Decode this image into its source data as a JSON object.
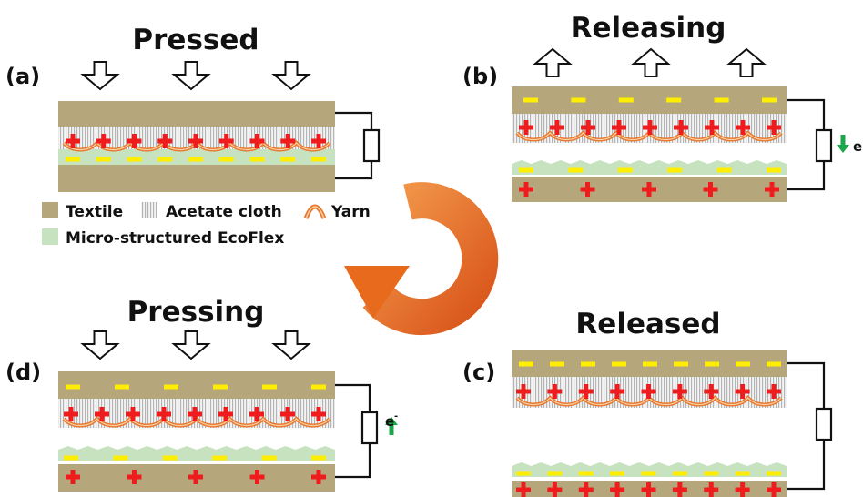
{
  "panels": {
    "a": {
      "label": "(a)",
      "title": "Pressed"
    },
    "b": {
      "label": "(b)",
      "title": "Releasing",
      "current": "e"
    },
    "c": {
      "label": "(c)",
      "title": "Released"
    },
    "d": {
      "label": "(d)",
      "title": "Pressing",
      "current": "e",
      "current_sup": "-"
    }
  },
  "legend": {
    "textile": "Textile",
    "acetate": "Acetate cloth",
    "yarn": "Yarn",
    "ecoflex": "Micro-structured EcoFlex"
  },
  "colors": {
    "textile": "#b5a77b",
    "ecoflex": "#c6e2be",
    "positive": "#ee1c1c",
    "negative": "#ffee00",
    "yarn": "#e8782e",
    "electron_arrow": "#1aa64a",
    "cycle_arrow": "#e86a1c"
  },
  "icons": {
    "press_arrow": "hollow-down-arrow-icon",
    "release_arrow": "hollow-up-arrow-icon",
    "cycle": "circular-cycle-arrow-icon",
    "resistor": "resistor-icon"
  }
}
